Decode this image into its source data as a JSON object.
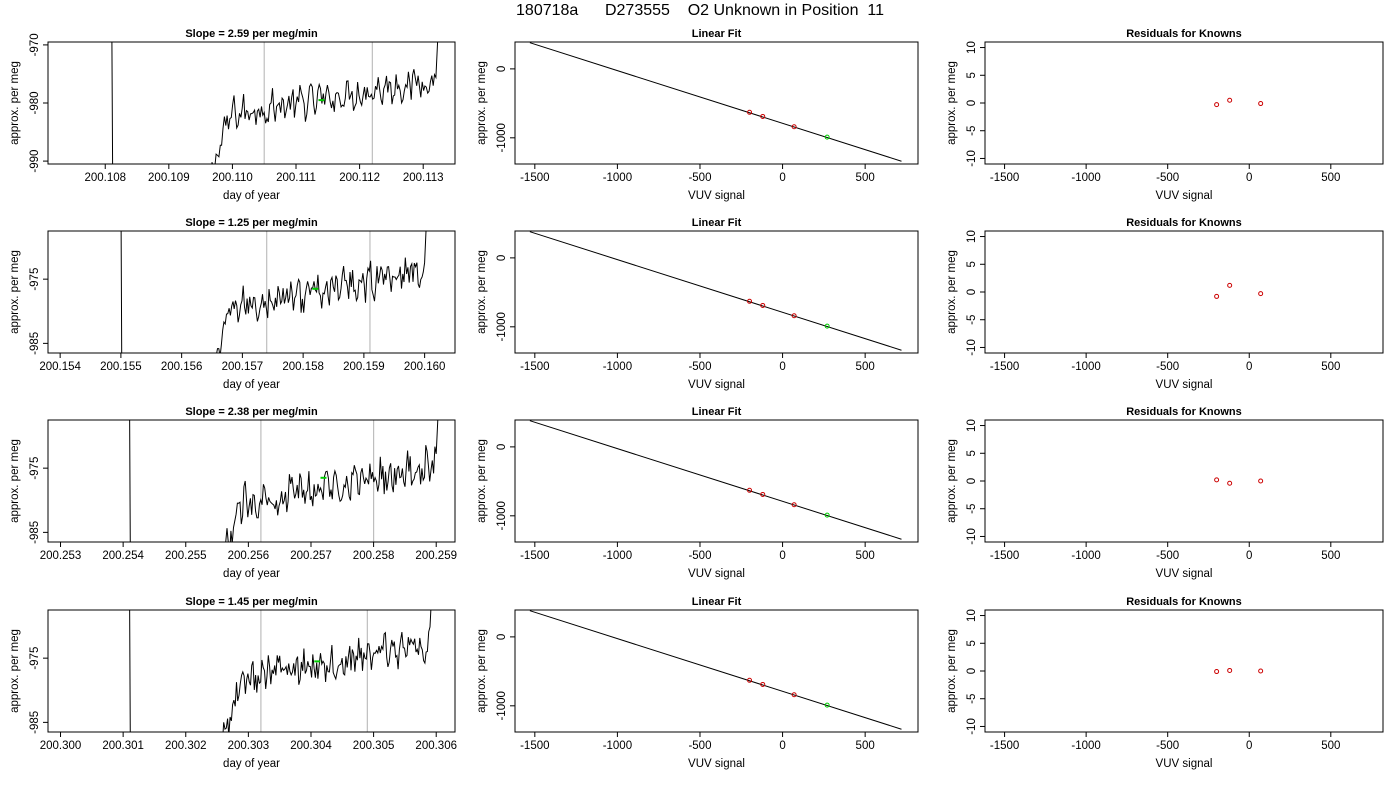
{
  "figure": {
    "title": "180718a      D273555    O2 Unknown in Position  11",
    "colors": {
      "line": "#000000",
      "grid": "#bebebe",
      "unknown": "#00cc00",
      "known": "#cc0000",
      "residual": "#cc0000"
    }
  },
  "chart_data": [
    {
      "type": "line",
      "panel": "trace",
      "row": 1,
      "title": "Slope =  2.59  per meg/min",
      "xlabel": "day of year",
      "ylabel": "approx. per meg",
      "xlim": [
        200.1071,
        200.1135
      ],
      "ylim": [
        -990.5,
        -969.5
      ],
      "xticks": [
        200.108,
        200.109,
        200.11,
        200.111,
        200.112,
        200.113
      ],
      "xtick_labels": [
        "200.108",
        "200.109",
        "200.110",
        "200.111",
        "200.112",
        "200.113"
      ],
      "yticks": [
        -990,
        -980,
        -970
      ],
      "ytick_labels": [
        "-990",
        "-980",
        "-970"
      ],
      "vlines": [
        200.1105,
        200.1122
      ],
      "unknown_point": {
        "x": 200.1114,
        "y": -979.5
      },
      "trace": {
        "x0": 200.1081,
        "x1": 200.1132,
        "mean": -979.0,
        "slope": 2.59,
        "drop_from": -960,
        "drop_to": -1000
      }
    },
    {
      "type": "line",
      "panel": "trace",
      "row": 2,
      "title": "Slope =  1.25  per meg/min",
      "xlabel": "day of year",
      "ylabel": "approx. per meg",
      "xlim": [
        200.1538,
        200.1605
      ],
      "ylim": [
        -986.5,
        -967.5
      ],
      "xticks": [
        200.154,
        200.155,
        200.156,
        200.157,
        200.158,
        200.159,
        200.16
      ],
      "xtick_labels": [
        "200.154",
        "200.155",
        "200.156",
        "200.157",
        "200.158",
        "200.159",
        "200.160"
      ],
      "yticks": [
        -985,
        -975
      ],
      "ytick_labels": [
        "-985",
        "-975"
      ],
      "vlines": [
        200.1574,
        200.1591
      ],
      "unknown_point": {
        "x": 200.1582,
        "y": -976.5
      },
      "trace": {
        "x0": 200.155,
        "x1": 200.16,
        "mean": -976.5,
        "slope": 1.25,
        "drop_from": -960,
        "drop_to": -1000
      }
    },
    {
      "type": "line",
      "panel": "trace",
      "row": 3,
      "title": "Slope =  2.38  per meg/min",
      "xlabel": "day of year",
      "ylabel": "approx. per meg",
      "xlim": [
        200.2528,
        200.2593
      ],
      "ylim": [
        -986.5,
        -967.5
      ],
      "xticks": [
        200.253,
        200.254,
        200.255,
        200.256,
        200.257,
        200.258,
        200.259
      ],
      "xtick_labels": [
        "200.253",
        "200.254",
        "200.255",
        "200.256",
        "200.257",
        "200.258",
        "200.259"
      ],
      "yticks": [
        -985,
        -975
      ],
      "ytick_labels": [
        "-985",
        "-975"
      ],
      "vlines": [
        200.2562,
        200.258
      ],
      "unknown_point": {
        "x": 200.2572,
        "y": -976.5
      },
      "trace": {
        "x0": 200.2541,
        "x1": 200.259,
        "mean": -977.5,
        "slope": 2.38,
        "drop_from": -960,
        "drop_to": -1000
      }
    },
    {
      "type": "line",
      "panel": "trace",
      "row": 4,
      "title": "Slope =  1.45  per meg/min",
      "xlabel": "day of year",
      "ylabel": "approx. per meg",
      "xlim": [
        200.2998,
        200.3063
      ],
      "ylim": [
        -986.5,
        -967.5
      ],
      "xticks": [
        200.3,
        200.301,
        200.302,
        200.303,
        200.304,
        200.305,
        200.306
      ],
      "xtick_labels": [
        "200.300",
        "200.301",
        "200.302",
        "200.303",
        "200.304",
        "200.305",
        "200.306"
      ],
      "yticks": [
        -985,
        -975
      ],
      "ytick_labels": [
        "-985",
        "-975"
      ],
      "vlines": [
        200.3032,
        200.3049
      ],
      "unknown_point": {
        "x": 200.3041,
        "y": -975.5
      },
      "trace": {
        "x0": 200.3011,
        "x1": 200.3059,
        "mean": -975.5,
        "slope": 1.45,
        "drop_from": -960,
        "drop_to": -1000
      }
    },
    {
      "type": "scatter",
      "panel": "fit",
      "row": 1,
      "title": "Linear Fit",
      "xlabel": "VUV signal",
      "ylabel": "approx. per meg",
      "xlim": [
        -1620,
        820
      ],
      "ylim": [
        -1380,
        390
      ],
      "xticks": [
        -1500,
        -1000,
        -500,
        0,
        500
      ],
      "xtick_labels": [
        "-1500",
        "-1000",
        "-500",
        "0",
        "500"
      ],
      "yticks": [
        -1000,
        0
      ],
      "ytick_labels": [
        "-1000",
        "0"
      ],
      "fit_line": {
        "x": [
          -1530,
          720
        ],
        "y": [
          380,
          -1340
        ]
      },
      "knowns": {
        "x": [
          -200,
          -120,
          70
        ],
        "y": [
          -630,
          -690,
          -840
        ]
      },
      "unknown": {
        "x": 270,
        "y": -990
      }
    },
    {
      "type": "scatter",
      "panel": "fit",
      "row": 2,
      "title": "Linear Fit",
      "xlabel": "VUV signal",
      "ylabel": "approx. per meg",
      "xlim": [
        -1620,
        820
      ],
      "ylim": [
        -1380,
        390
      ],
      "xticks": [
        -1500,
        -1000,
        -500,
        0,
        500
      ],
      "xtick_labels": [
        "-1500",
        "-1000",
        "-500",
        "0",
        "500"
      ],
      "yticks": [
        -1000,
        0
      ],
      "ytick_labels": [
        "-1000",
        "0"
      ],
      "fit_line": {
        "x": [
          -1530,
          720
        ],
        "y": [
          380,
          -1340
        ]
      },
      "knowns": {
        "x": [
          -200,
          -120,
          70
        ],
        "y": [
          -630,
          -690,
          -840
        ]
      },
      "unknown": {
        "x": 270,
        "y": -990
      }
    },
    {
      "type": "scatter",
      "panel": "fit",
      "row": 3,
      "title": "Linear Fit",
      "xlabel": "VUV signal",
      "ylabel": "approx. per meg",
      "xlim": [
        -1620,
        820
      ],
      "ylim": [
        -1380,
        390
      ],
      "xticks": [
        -1500,
        -1000,
        -500,
        0,
        500
      ],
      "xtick_labels": [
        "-1500",
        "-1000",
        "-500",
        "0",
        "500"
      ],
      "yticks": [
        -1000,
        0
      ],
      "ytick_labels": [
        "-1000",
        "0"
      ],
      "fit_line": {
        "x": [
          -1530,
          720
        ],
        "y": [
          380,
          -1340
        ]
      },
      "knowns": {
        "x": [
          -200,
          -120,
          70
        ],
        "y": [
          -630,
          -690,
          -840
        ]
      },
      "unknown": {
        "x": 270,
        "y": -990
      }
    },
    {
      "type": "scatter",
      "panel": "fit",
      "row": 4,
      "title": "Linear Fit",
      "xlabel": "VUV signal",
      "ylabel": "approx. per meg",
      "xlim": [
        -1620,
        820
      ],
      "ylim": [
        -1380,
        390
      ],
      "xticks": [
        -1500,
        -1000,
        -500,
        0,
        500
      ],
      "xtick_labels": [
        "-1500",
        "-1000",
        "-500",
        "0",
        "500"
      ],
      "yticks": [
        -1000,
        0
      ],
      "ytick_labels": [
        "-1000",
        "0"
      ],
      "fit_line": {
        "x": [
          -1530,
          720
        ],
        "y": [
          380,
          -1340
        ]
      },
      "knowns": {
        "x": [
          -200,
          -120,
          70
        ],
        "y": [
          -630,
          -690,
          -840
        ]
      },
      "unknown": {
        "x": 270,
        "y": -990
      }
    },
    {
      "type": "scatter",
      "panel": "residuals",
      "row": 1,
      "title": "Residuals for Knowns",
      "xlabel": "VUV signal",
      "ylabel": "approx. per meg",
      "xlim": [
        -1620,
        820
      ],
      "ylim": [
        -11,
        11
      ],
      "xticks": [
        -1500,
        -1000,
        -500,
        0,
        500
      ],
      "xtick_labels": [
        "-1500",
        "-1000",
        "-500",
        "0",
        "500"
      ],
      "yticks": [
        -10,
        -5,
        0,
        5,
        10
      ],
      "ytick_labels": [
        "-10",
        "-5",
        "0",
        "5",
        "10"
      ],
      "points": {
        "x": [
          -200,
          -120,
          70
        ],
        "y": [
          -0.3,
          0.5,
          -0.1
        ]
      }
    },
    {
      "type": "scatter",
      "panel": "residuals",
      "row": 2,
      "title": "Residuals for Knowns",
      "xlabel": "VUV signal",
      "ylabel": "approx. per meg",
      "xlim": [
        -1620,
        820
      ],
      "ylim": [
        -11,
        11
      ],
      "xticks": [
        -1500,
        -1000,
        -500,
        0,
        500
      ],
      "xtick_labels": [
        "-1500",
        "-1000",
        "-500",
        "0",
        "500"
      ],
      "yticks": [
        -10,
        -5,
        0,
        5,
        10
      ],
      "ytick_labels": [
        "-10",
        "-5",
        "0",
        "5",
        "10"
      ],
      "points": {
        "x": [
          -200,
          -120,
          70
        ],
        "y": [
          -0.8,
          1.2,
          -0.3
        ]
      }
    },
    {
      "type": "scatter",
      "panel": "residuals",
      "row": 3,
      "title": "Residuals for Knowns",
      "xlabel": "VUV signal",
      "ylabel": "approx. per meg",
      "xlim": [
        -1620,
        820
      ],
      "ylim": [
        -11,
        11
      ],
      "xticks": [
        -1500,
        -1000,
        -500,
        0,
        500
      ],
      "xtick_labels": [
        "-1500",
        "-1000",
        "-500",
        "0",
        "500"
      ],
      "yticks": [
        -10,
        -5,
        0,
        5,
        10
      ],
      "ytick_labels": [
        "-10",
        "-5",
        "0",
        "5",
        "10"
      ],
      "points": {
        "x": [
          -200,
          -120,
          70
        ],
        "y": [
          0.2,
          -0.4,
          0.0
        ]
      }
    },
    {
      "type": "scatter",
      "panel": "residuals",
      "row": 4,
      "title": "Residuals for Knowns",
      "xlabel": "VUV signal",
      "ylabel": "approx. per meg",
      "xlim": [
        -1620,
        820
      ],
      "ylim": [
        -11,
        11
      ],
      "xticks": [
        -1500,
        -1000,
        -500,
        0,
        500
      ],
      "xtick_labels": [
        "-1500",
        "-1000",
        "-500",
        "0",
        "500"
      ],
      "yticks": [
        -10,
        -5,
        0,
        5,
        10
      ],
      "ytick_labels": [
        "-10",
        "-5",
        "0",
        "5",
        "10"
      ],
      "points": {
        "x": [
          -200,
          -120,
          70
        ],
        "y": [
          -0.1,
          0.1,
          0.0
        ]
      }
    }
  ]
}
